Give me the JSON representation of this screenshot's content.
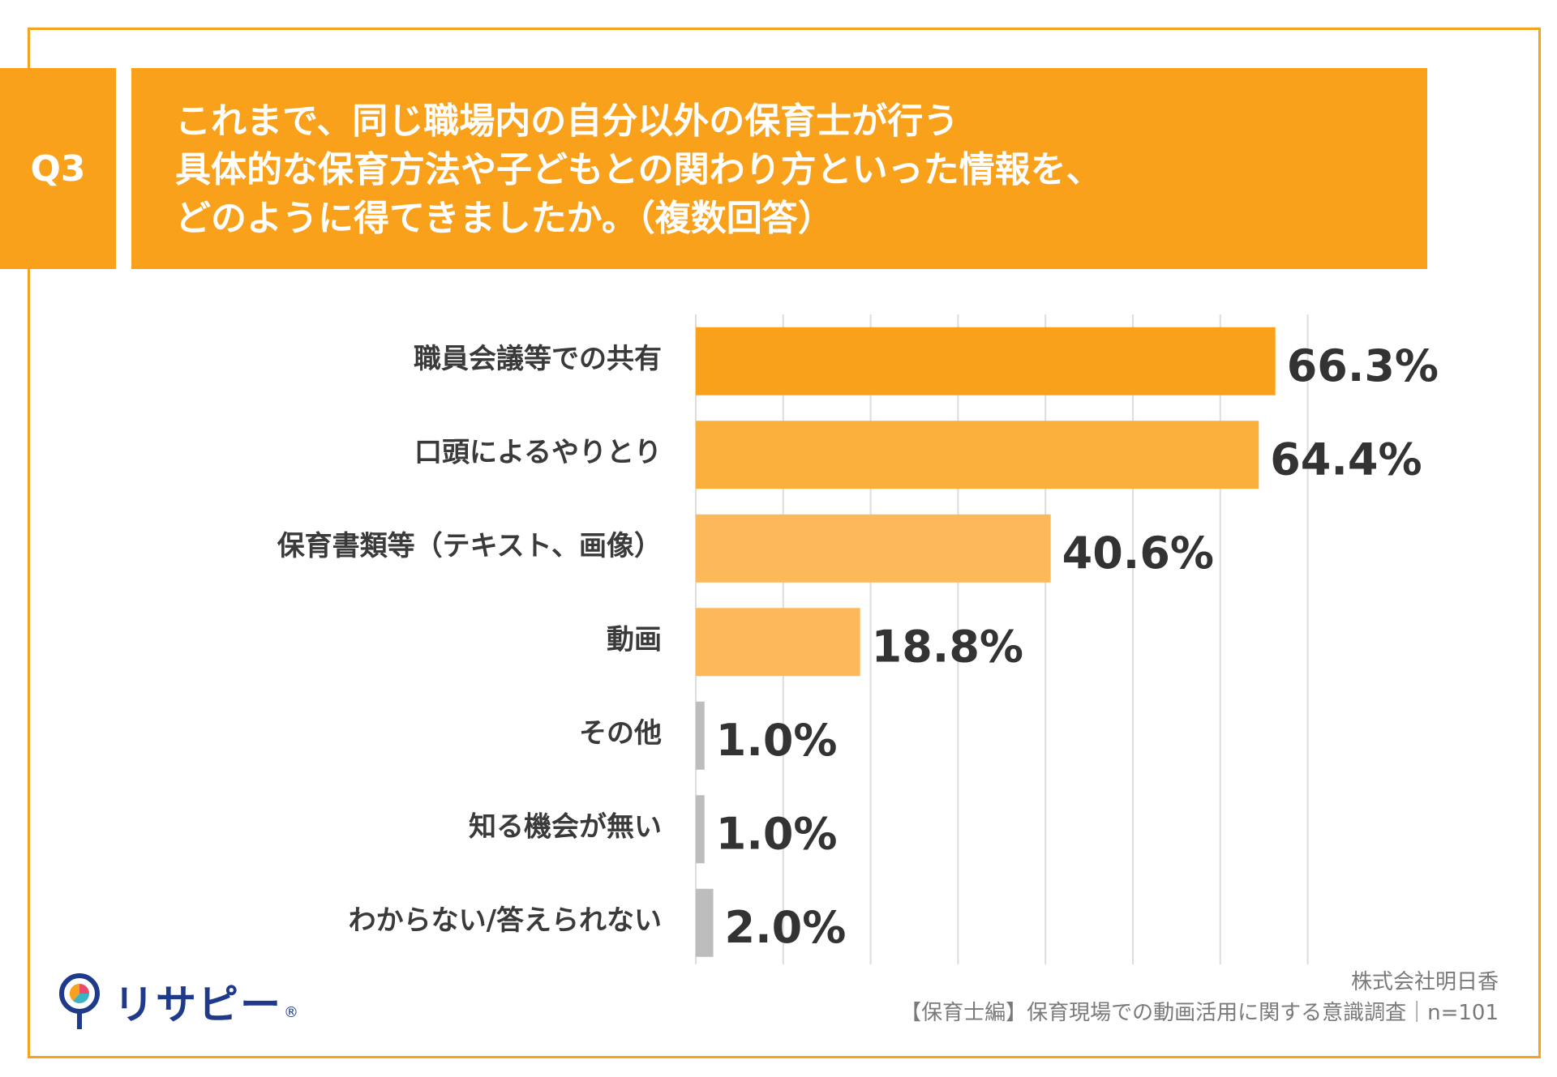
{
  "question": {
    "number": "Q3",
    "lines": [
      "これまで、同じ職場内の自分以外の保育士が行う",
      "具体的な保育方法や子どもとの関わり方といった情報を、",
      "どのように得てきましたか。（複数回答）"
    ]
  },
  "chart_data": {
    "type": "bar",
    "orientation": "horizontal",
    "title": "これまで、同じ職場内の自分以外の保育士が行う具体的な保育方法や子どもとの関わり方といった情報を、どのように得てきましたか。（複数回答）",
    "categories": [
      "職員会議等での共有",
      "口頭によるやりとり",
      "保育書類等（テキスト、画像）",
      "動画",
      "その他",
      "知る機会が無い",
      "わからない/答えられない"
    ],
    "values": [
      66.3,
      64.4,
      40.6,
      18.8,
      1.0,
      1.0,
      2.0
    ],
    "value_labels": [
      "66.3%",
      "64.4%",
      "40.6%",
      "18.8%",
      "1.0%",
      "1.0%",
      "2.0%"
    ],
    "colors": [
      "#F9A11B",
      "#FBB03E",
      "#FDB85A",
      "#FDB85A",
      "#BDBDBD",
      "#BDBDBD",
      "#BDBDBD"
    ],
    "xlim": [
      0,
      70
    ],
    "grid": true,
    "xlabel": "",
    "ylabel": ""
  },
  "footer": {
    "company": "株式会社明日香",
    "survey": "【保育士編】保育現場での動画活用に関する意識調査｜n=101"
  },
  "logo": {
    "text": "リサピー",
    "mark": "®",
    "colors": [
      "#1f3a8a",
      "#F9A11B",
      "#E94B6B",
      "#3BB3C3"
    ]
  }
}
